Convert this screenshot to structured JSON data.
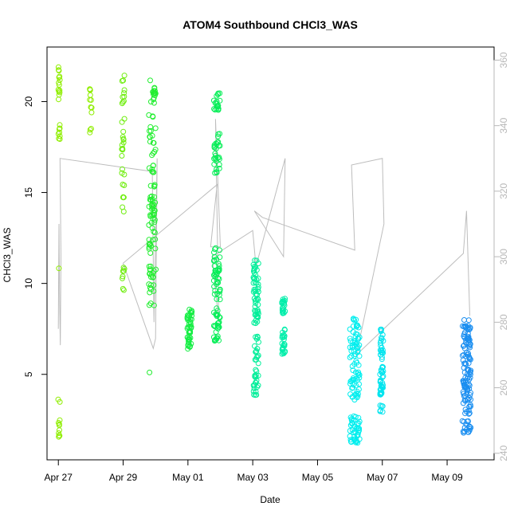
{
  "chart_data": {
    "type": "scatter",
    "title": "ATOM4 Southbound CHCl3_WAS",
    "xlabel": "Date",
    "ylabel": "CHCl3_WAS",
    "xlim": [
      -0.35,
      13.45
    ],
    "ylim": [
      0.3,
      23.0
    ],
    "ylim_right": [
      238,
      364
    ],
    "x_ticks": [
      {
        "label": "Apr 27",
        "day": 0
      },
      {
        "label": "Apr 29",
        "day": 2
      },
      {
        "label": "May 01",
        "day": 4
      },
      {
        "label": "May 03",
        "day": 6
      },
      {
        "label": "May 05",
        "day": 8
      },
      {
        "label": "May 07",
        "day": 10
      },
      {
        "label": "May 09",
        "day": 12
      }
    ],
    "y_ticks_left": [
      "5",
      "10",
      "15",
      "20"
    ],
    "y_tick_values_left": [
      5,
      10,
      15,
      20
    ],
    "y_ticks_right": [
      "240",
      "260",
      "280",
      "300",
      "320",
      "340",
      "360"
    ],
    "y_tick_values_right": [
      240,
      260,
      280,
      300,
      320,
      340,
      360
    ],
    "series": [
      {
        "name": "CHCl3_WAS",
        "clusters": [
          {
            "day": 0.02,
            "width": 0.06,
            "segments": [
              [
                19.8,
                21.9
              ],
              [
                17.8,
                18.8
              ],
              [
                10.8,
                11.0
              ],
              [
                3.2,
                3.8
              ],
              [
                1.5,
                2.6
              ]
            ],
            "color": "#8fee00",
            "count": 34
          },
          {
            "day": 1.0,
            "width": 0.06,
            "segments": [
              [
                18.2,
                18.6
              ],
              [
                19.4,
                20.8
              ]
            ],
            "color": "#8fee00",
            "count": 12
          },
          {
            "day": 2.0,
            "width": 0.08,
            "segments": [
              [
                17.0,
                21.5
              ],
              [
                12.5,
                16.5
              ],
              [
                9.6,
                11.0
              ]
            ],
            "color": "#70ee10",
            "count": 40
          },
          {
            "day": 2.9,
            "width": 0.22,
            "segments": [
              [
                16.0,
                21.2
              ],
              [
                11.5,
                15.5
              ],
              [
                9.5,
                11.0
              ],
              [
                8.7,
                9.0
              ],
              [
                5.1,
                5.2
              ]
            ],
            "color": "#22ee30",
            "count": 110
          },
          {
            "day": 4.05,
            "width": 0.14,
            "segments": [
              [
                6.4,
                8.6
              ]
            ],
            "color": "#16ee44",
            "count": 50
          },
          {
            "day": 4.9,
            "width": 0.2,
            "segments": [
              [
                19.5,
                20.5
              ],
              [
                16.0,
                18.3
              ],
              [
                8.0,
                12.0
              ],
              [
                6.8,
                8.0
              ]
            ],
            "color": "#08ee58",
            "count": 120
          },
          {
            "day": 6.1,
            "width": 0.16,
            "segments": [
              [
                5.6,
                7.2
              ],
              [
                3.5,
                5.3
              ],
              [
                7.8,
                11.3
              ]
            ],
            "color": "#00ee99",
            "count": 90
          },
          {
            "day": 6.95,
            "width": 0.1,
            "segments": [
              [
                6.1,
                7.5
              ],
              [
                8.2,
                9.2
              ]
            ],
            "color": "#00eeaa",
            "count": 45
          },
          {
            "day": 9.15,
            "width": 0.3,
            "segments": [
              [
                5.0,
                8.2
              ],
              [
                3.5,
                5.0
              ],
              [
                1.2,
                2.8
              ]
            ],
            "color": "#00eeee",
            "count": 120
          },
          {
            "day": 9.98,
            "width": 0.1,
            "segments": [
              [
                5.8,
                7.6
              ],
              [
                3.8,
                5.5
              ],
              [
                2.9,
                3.3
              ]
            ],
            "color": "#00e4ee",
            "count": 60
          },
          {
            "day": 12.6,
            "width": 0.26,
            "segments": [
              [
                5.5,
                8.0
              ],
              [
                2.8,
                5.4
              ],
              [
                1.7,
                2.5
              ]
            ],
            "color": "#1a8ef0",
            "count": 130
          }
        ]
      }
    ],
    "line_series": [
      {
        "name": "secondary-trace",
        "axis": "right",
        "color": "#bdbdbd",
        "points": [
          [
            0.0,
            278
          ],
          [
            0.02,
            310
          ],
          [
            0.04,
            285
          ],
          [
            0.06,
            273
          ],
          [
            0.08,
            300
          ],
          [
            0.05,
            330
          ],
          [
            2.9,
            326
          ],
          [
            2.95,
            280
          ],
          [
            3.05,
            330
          ],
          [
            3.0,
            275
          ],
          [
            2.93,
            272
          ],
          [
            2.0,
            298
          ],
          [
            4.9,
            322
          ],
          [
            4.7,
            303
          ],
          [
            5.0,
            303
          ],
          [
            4.85,
            342
          ],
          [
            4.95,
            280
          ],
          [
            4.75,
            300
          ],
          [
            6.0,
            308
          ],
          [
            6.1,
            297
          ],
          [
            7.0,
            330
          ],
          [
            6.95,
            300
          ],
          [
            6.05,
            314
          ],
          [
            6.3,
            312
          ],
          [
            9.15,
            302
          ],
          [
            9.05,
            328
          ],
          [
            10.0,
            330
          ],
          [
            10.05,
            310
          ],
          [
            9.2,
            270
          ],
          [
            12.5,
            301
          ],
          [
            12.6,
            314
          ],
          [
            12.7,
            282
          ]
        ]
      }
    ]
  }
}
